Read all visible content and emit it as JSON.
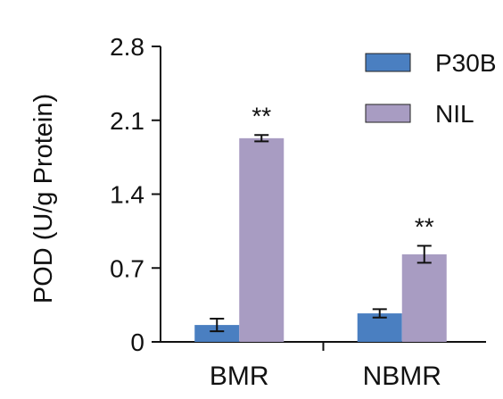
{
  "chart_data": {
    "type": "bar",
    "title": "",
    "xlabel": "",
    "ylabel": "POD (U/g Protein)",
    "ylim": [
      0,
      2.8
    ],
    "yticks": [
      "0",
      "0.7",
      "1.4",
      "2.1",
      "2.8"
    ],
    "categories": [
      "BMR",
      "NBMR"
    ],
    "series": [
      {
        "name": "P30B",
        "color": "#4a7fc1",
        "values": [
          0.16,
          0.27
        ],
        "errors": [
          0.06,
          0.04
        ],
        "annotations": [
          "",
          ""
        ]
      },
      {
        "name": "NIL",
        "color": "#a89cc2",
        "values": [
          1.93,
          0.83
        ],
        "errors": [
          0.03,
          0.08
        ],
        "annotations": [
          "**",
          "**"
        ]
      }
    ],
    "legend_position": "top-right",
    "grid": false
  }
}
